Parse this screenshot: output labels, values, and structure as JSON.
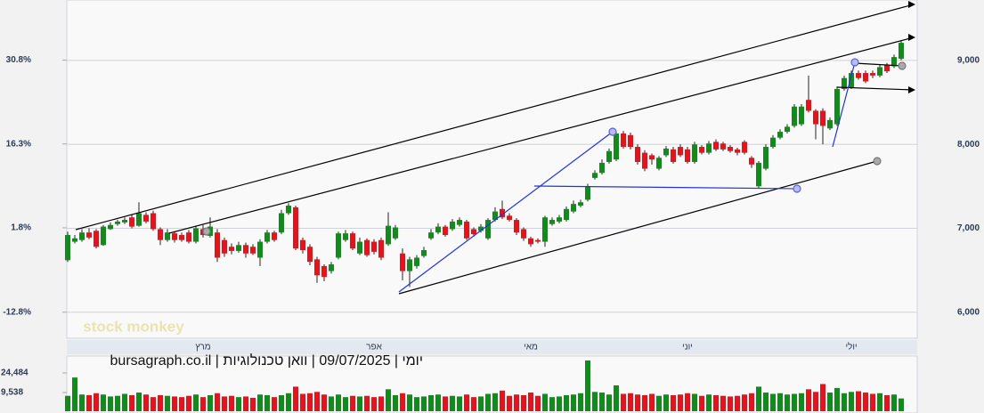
{
  "chart_data": {
    "type": "candlestick",
    "title": "יומי | 09/07/2025 | וואן טכנולוגיות | bursagraph.co.il",
    "watermark": "stock monkey",
    "categories": [
      null,
      null,
      null,
      null,
      null,
      null,
      null,
      null,
      null,
      null,
      null,
      null,
      null,
      null,
      null,
      null,
      null,
      null,
      null,
      "מרץ",
      null,
      null,
      null,
      null,
      null,
      null,
      null,
      null,
      null,
      null,
      null,
      null,
      null,
      null,
      null,
      null,
      null,
      null,
      null,
      null,
      null,
      null,
      null,
      "אפר",
      null,
      null,
      null,
      null,
      null,
      null,
      null,
      null,
      null,
      null,
      null,
      null,
      null,
      null,
      null,
      null,
      null,
      null,
      null,
      null,
      null,
      "מאי",
      null,
      null,
      null,
      null,
      null,
      null,
      null,
      null,
      null,
      null,
      null,
      null,
      null,
      null,
      null,
      null,
      null,
      null,
      null,
      null,
      null,
      "יוני",
      null,
      null,
      null,
      null,
      null,
      null,
      null,
      null,
      null,
      null,
      null,
      null,
      null,
      null,
      null,
      null,
      null,
      null,
      null,
      null,
      null,
      null,
      "יולי",
      null,
      null,
      null,
      null,
      null,
      null,
      null
    ],
    "candles": [
      [
        6620,
        6960,
        6600,
        6920
      ],
      [
        6840,
        6920,
        6820,
        6880
      ],
      [
        6860,
        6990,
        6840,
        6950
      ],
      [
        6950,
        7000,
        6870,
        6890
      ],
      [
        6970,
        6990,
        6760,
        6780
      ],
      [
        6800,
        7040,
        6790,
        7020
      ],
      [
        6990,
        7070,
        6980,
        7040
      ],
      [
        7050,
        7100,
        7030,
        7080
      ],
      [
        7070,
        7130,
        7050,
        7100
      ],
      [
        7130,
        7160,
        7000,
        7020
      ],
      [
        7030,
        7310,
        7020,
        7180
      ],
      [
        7160,
        7190,
        7060,
        7080
      ],
      [
        7180,
        7210,
        6970,
        6990
      ],
      [
        6990,
        7010,
        6800,
        6860
      ],
      [
        6860,
        6990,
        6840,
        6950
      ],
      [
        6940,
        6960,
        6830,
        6860
      ],
      [
        6920,
        6950,
        6840,
        6860
      ],
      [
        6950,
        6980,
        6820,
        6840
      ],
      [
        6840,
        7030,
        6820,
        7000
      ],
      [
        6990,
        7040,
        6890,
        6920
      ],
      [
        6910,
        7130,
        6890,
        7020
      ],
      [
        6950,
        6990,
        6600,
        6650
      ],
      [
        6860,
        6890,
        6660,
        6700
      ],
      [
        6780,
        6820,
        6690,
        6730
      ],
      [
        6730,
        6840,
        6710,
        6800
      ],
      [
        6800,
        6830,
        6650,
        6700
      ],
      [
        6780,
        6810,
        6680,
        6700
      ],
      [
        6650,
        6870,
        6550,
        6840
      ],
      [
        6840,
        6980,
        6820,
        6950
      ],
      [
        6950,
        6970,
        6840,
        6860
      ],
      [
        6950,
        7220,
        6930,
        7180
      ],
      [
        7180,
        7300,
        7160,
        7270
      ],
      [
        7250,
        7270,
        6740,
        6760
      ],
      [
        6860,
        6890,
        6700,
        6740
      ],
      [
        6780,
        6810,
        6560,
        6600
      ],
      [
        6630,
        6660,
        6350,
        6440
      ],
      [
        6550,
        6570,
        6370,
        6420
      ],
      [
        6490,
        6600,
        6460,
        6570
      ],
      [
        6650,
        6960,
        6630,
        6940
      ],
      [
        6860,
        6980,
        6840,
        6940
      ],
      [
        6940,
        6960,
        6740,
        6760
      ],
      [
        6700,
        6890,
        6680,
        6840
      ],
      [
        6860,
        6880,
        6660,
        6680
      ],
      [
        6840,
        6870,
        6690,
        6720
      ],
      [
        6860,
        6890,
        6620,
        6650
      ],
      [
        6810,
        7190,
        6790,
        7030
      ],
      [
        6880,
        7040,
        6860,
        7010
      ],
      [
        6700,
        6760,
        6380,
        6490
      ],
      [
        6490,
        6660,
        6300,
        6630
      ],
      [
        6550,
        6680,
        6520,
        6650
      ],
      [
        6670,
        6780,
        6650,
        6740
      ],
      [
        6880,
        6990,
        6860,
        6950
      ],
      [
        6950,
        7060,
        6930,
        7020
      ],
      [
        7020,
        7040,
        6900,
        6920
      ],
      [
        6990,
        7110,
        6970,
        7080
      ],
      [
        7040,
        7130,
        7020,
        7100
      ],
      [
        7080,
        7100,
        6860,
        6880
      ],
      [
        6990,
        7010,
        6900,
        6930
      ],
      [
        6970,
        7050,
        6950,
        7020
      ],
      [
        6880,
        7120,
        6860,
        7100
      ],
      [
        7100,
        7250,
        7080,
        7200
      ],
      [
        7230,
        7330,
        7110,
        7130
      ],
      [
        7150,
        7180,
        7080,
        7100
      ],
      [
        7100,
        7120,
        6920,
        6950
      ],
      [
        6990,
        7010,
        6850,
        6880
      ],
      [
        6880,
        6900,
        6780,
        6810
      ],
      [
        6860,
        6880,
        6820,
        6840
      ],
      [
        6840,
        7150,
        6780,
        7130
      ],
      [
        7050,
        7130,
        7030,
        7100
      ],
      [
        7080,
        7160,
        7060,
        7130
      ],
      [
        7100,
        7260,
        7080,
        7230
      ],
      [
        7200,
        7330,
        7180,
        7290
      ],
      [
        7270,
        7340,
        7250,
        7310
      ],
      [
        7340,
        7530,
        7320,
        7500
      ],
      [
        7600,
        7690,
        7580,
        7660
      ],
      [
        7660,
        7820,
        7640,
        7780
      ],
      [
        7790,
        7950,
        7770,
        7920
      ],
      [
        7820,
        8160,
        7800,
        8130
      ],
      [
        8130,
        8160,
        7950,
        7970
      ],
      [
        8110,
        8140,
        7940,
        7970
      ],
      [
        7970,
        8000,
        7760,
        7790
      ],
      [
        7900,
        7930,
        7680,
        7710
      ],
      [
        7870,
        7890,
        7760,
        7820
      ],
      [
        7710,
        7860,
        7690,
        7840
      ],
      [
        7870,
        7980,
        7850,
        7950
      ],
      [
        7940,
        7970,
        7770,
        7790
      ],
      [
        7970,
        8000,
        7850,
        7870
      ],
      [
        7940,
        7970,
        7770,
        7790
      ],
      [
        7790,
        8030,
        7770,
        8000
      ],
      [
        7970,
        7990,
        7880,
        7900
      ],
      [
        7900,
        8040,
        7880,
        8010
      ],
      [
        8030,
        8060,
        7920,
        7940
      ],
      [
        8010,
        8030,
        7920,
        7940
      ],
      [
        7970,
        7990,
        7900,
        7920
      ],
      [
        7940,
        7960,
        7870,
        7900
      ],
      [
        8030,
        8050,
        7880,
        7900
      ],
      [
        7840,
        7860,
        7720,
        7760
      ],
      [
        7500,
        7800,
        7480,
        7780
      ],
      [
        7710,
        8000,
        7690,
        7970
      ],
      [
        7970,
        8110,
        7950,
        8080
      ],
      [
        8080,
        8180,
        8060,
        8150
      ],
      [
        8150,
        8240,
        8130,
        8210
      ],
      [
        8220,
        8480,
        8200,
        8450
      ],
      [
        8240,
        8480,
        8220,
        8450
      ],
      [
        8530,
        8820,
        8380,
        8400
      ],
      [
        8400,
        8420,
        8060,
        8240
      ],
      [
        8400,
        8430,
        8000,
        8220
      ],
      [
        8190,
        8320,
        8170,
        8290
      ],
      [
        8240,
        8690,
        8220,
        8660
      ],
      [
        8660,
        8820,
        8640,
        8790
      ],
      [
        8680,
        8880,
        8660,
        8850
      ],
      [
        8850,
        8880,
        8770,
        8790
      ],
      [
        8850,
        8880,
        8730,
        8750
      ],
      [
        8850,
        8880,
        8790,
        8820
      ],
      [
        8820,
        8950,
        8800,
        8920
      ],
      [
        8940,
        8970,
        8850,
        8870
      ],
      [
        8930,
        9070,
        8910,
        9040
      ],
      [
        9020,
        9240,
        9000,
        9210
      ]
    ],
    "volume": [
      7000,
      21000,
      8000,
      7500,
      9000,
      8000,
      6500,
      7000,
      8500,
      7500,
      9500,
      8000,
      6000,
      7500,
      7000,
      6500,
      6000,
      7000,
      8000,
      6000,
      7500,
      9000,
      6500,
      7000,
      6000,
      6500,
      5500,
      8000,
      7500,
      6000,
      7500,
      9000,
      14000,
      8500,
      9000,
      10000,
      8000,
      6500,
      8000,
      6000,
      7000,
      6500,
      7000,
      6000,
      6500,
      12000,
      7500,
      9000,
      8000,
      6000,
      6500,
      7500,
      8000,
      6500,
      7000,
      6500,
      8000,
      6000,
      6500,
      8500,
      9000,
      11000,
      7000,
      8000,
      7500,
      9500,
      7000,
      8500,
      6000,
      6500,
      7500,
      8000,
      9000,
      34000,
      10000,
      9500,
      8000,
      15000,
      8500,
      9000,
      8000,
      7500,
      8500,
      7000,
      8000,
      7500,
      8000,
      9000,
      8500,
      7000,
      8000,
      7500,
      7000,
      6500,
      7000,
      8000,
      9000,
      14000,
      9500,
      8500,
      9000,
      8000,
      8500,
      9000,
      12000,
      10000,
      16000,
      9500,
      13000,
      9000,
      10000,
      10500,
      9500,
      8500,
      9000,
      7500,
      8000,
      5000
    ],
    "ylim": [
      5690,
      9720
    ],
    "yticks": [
      {
        "value": 6000,
        "label": "6,000"
      },
      {
        "value": 7000,
        "label": "7,000"
      },
      {
        "value": 8000,
        "label": "8,000"
      },
      {
        "value": 9000,
        "label": "9,000"
      }
    ],
    "y2lim": [
      -17.3,
      41.2
    ],
    "y2ticks": [
      {
        "value": -12.8,
        "label": "-12.8%"
      },
      {
        "value": 1.8,
        "label": "1.8%"
      },
      {
        "value": 16.3,
        "label": "16.3%"
      },
      {
        "value": 30.8,
        "label": "30.8%"
      }
    ],
    "volume_lim": [
      0,
      34000
    ],
    "volume_ticks": [
      {
        "value": 9538,
        "label": "9,538"
      },
      {
        "value": 24484,
        "label": "24,484"
      }
    ],
    "up_color": "#148a1e",
    "down_color": "#e3141c",
    "grid": true
  }
}
